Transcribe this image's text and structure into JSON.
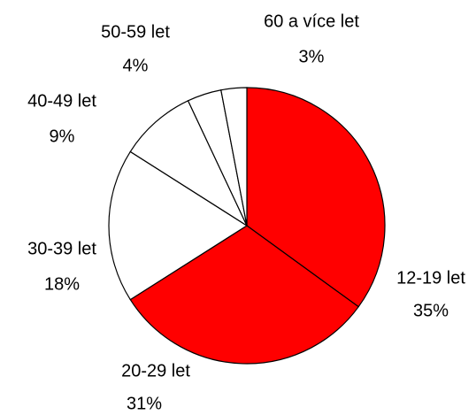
{
  "chart_data": {
    "type": "pie",
    "categories": [
      "12-19 let",
      "20-29 let",
      "30-39 let",
      "40-49 let",
      "50-59 let",
      "60 a více let"
    ],
    "values": [
      35,
      31,
      18,
      9,
      4,
      3
    ],
    "value_labels": [
      "35%",
      "31%",
      "18%",
      "9%",
      "4%",
      "3%"
    ],
    "colors": [
      "#ff0000",
      "#ff0000",
      "#ffffff",
      "#ffffff",
      "#ffffff",
      "#ffffff"
    ]
  }
}
